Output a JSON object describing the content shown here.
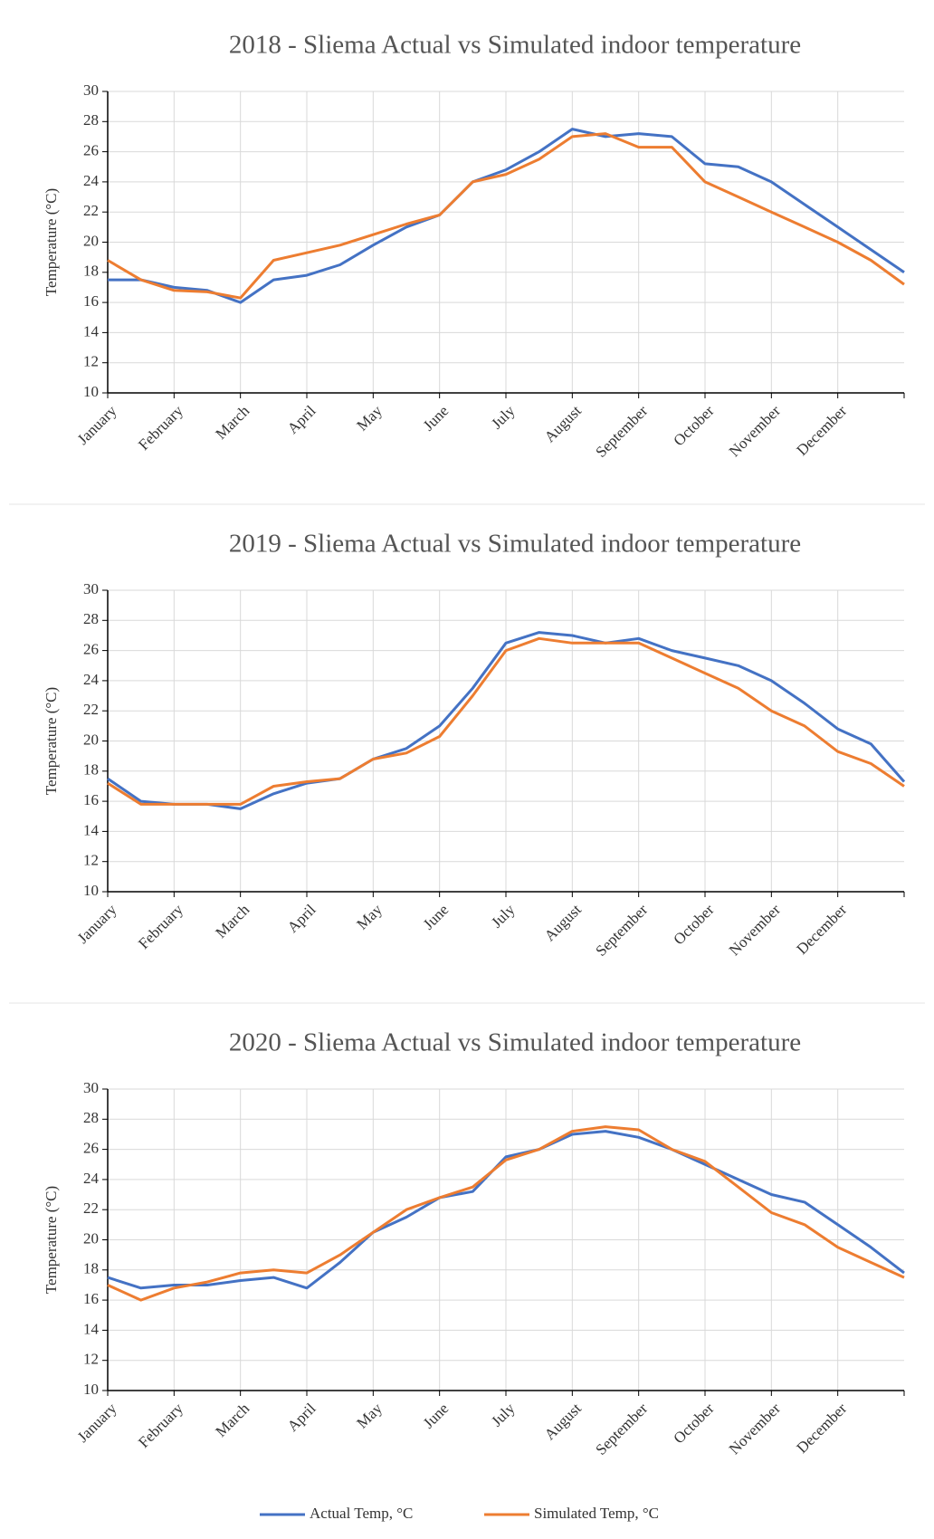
{
  "chart_data": [
    {
      "type": "line",
      "title": "2018 - Sliema Actual vs Simulated indoor temperature",
      "y_label": "Temperature (°C)",
      "categories": [
        "January",
        null,
        "February",
        null,
        "March",
        null,
        "April",
        null,
        "May",
        null,
        "June",
        null,
        "July",
        null,
        "August",
        null,
        "September",
        null,
        "October",
        null,
        "November",
        null,
        "December",
        null,
        null
      ],
      "series": [
        {
          "name": "Actual Temp, °C",
          "color": "#4472c4",
          "values": [
            17.5,
            17.5,
            17.0,
            16.8,
            16.0,
            17.5,
            17.8,
            18.5,
            19.8,
            21.0,
            21.8,
            24.0,
            24.8,
            26.0,
            27.5,
            27.0,
            27.2,
            27.0,
            25.2,
            25.0,
            24.0,
            22.5,
            21.0,
            19.5,
            18.0
          ]
        },
        {
          "name": "Simulated Temp, °C",
          "color": "#ed7d31",
          "values": [
            18.8,
            17.5,
            16.8,
            16.7,
            16.3,
            18.8,
            19.3,
            19.8,
            20.5,
            21.2,
            21.8,
            24.0,
            24.5,
            25.5,
            27.0,
            27.2,
            26.3,
            26.3,
            24.0,
            23.0,
            22.0,
            21.0,
            20.0,
            18.8,
            17.2
          ]
        }
      ],
      "ylim": [
        10,
        30
      ],
      "yticks": [
        10,
        12,
        14,
        16,
        18,
        20,
        22,
        24,
        26,
        28,
        30
      ],
      "grid": true
    },
    {
      "type": "line",
      "title": "2019 - Sliema Actual vs Simulated indoor temperature",
      "y_label": "Temperature (°C)",
      "categories": [
        "January",
        null,
        "February",
        null,
        "March",
        null,
        "April",
        null,
        "May",
        null,
        "June",
        null,
        "July",
        null,
        "August",
        null,
        "September",
        null,
        "October",
        null,
        "November",
        null,
        "December",
        null,
        null
      ],
      "series": [
        {
          "color": "#4472c4",
          "values": [
            17.5,
            16.0,
            15.8,
            15.8,
            15.5,
            16.5,
            17.2,
            17.5,
            18.8,
            19.5,
            21.0,
            23.5,
            26.5,
            27.2,
            27.0,
            26.5,
            26.8,
            26.0,
            25.5,
            25.0,
            24.0,
            22.5,
            20.8,
            19.8,
            17.3
          ]
        },
        {
          "color": "#ed7d31",
          "values": [
            17.2,
            15.8,
            15.8,
            15.8,
            15.8,
            17.0,
            17.3,
            17.5,
            18.8,
            19.2,
            20.3,
            23.0,
            26.0,
            26.8,
            26.5,
            26.5,
            26.5,
            25.5,
            24.5,
            23.5,
            22.0,
            21.0,
            19.3,
            18.5,
            17.0
          ]
        }
      ],
      "ylim": [
        10,
        30
      ],
      "yticks": [
        10,
        12,
        14,
        16,
        18,
        20,
        22,
        24,
        26,
        28,
        30
      ],
      "grid": true
    },
    {
      "type": "line",
      "title": "2020 - Sliema Actual vs Simulated indoor temperature",
      "y_label": "Temperature (°C)",
      "categories": [
        "January",
        null,
        "February",
        null,
        "March",
        null,
        "April",
        null,
        "May",
        null,
        "June",
        null,
        "July",
        null,
        "August",
        null,
        "September",
        null,
        "October",
        null,
        "November",
        null,
        "December",
        null,
        null
      ],
      "series": [
        {
          "color": "#4472c4",
          "values": [
            17.5,
            16.8,
            17.0,
            17.0,
            17.3,
            17.5,
            16.8,
            18.5,
            20.5,
            21.5,
            22.8,
            23.2,
            25.5,
            26.0,
            27.0,
            27.2,
            26.8,
            26.0,
            25.0,
            24.0,
            23.0,
            22.5,
            21.0,
            19.5,
            17.8
          ]
        },
        {
          "color": "#ed7d31",
          "values": [
            17.0,
            16.0,
            16.8,
            17.2,
            17.8,
            18.0,
            17.8,
            19.0,
            20.5,
            22.0,
            22.8,
            23.5,
            25.3,
            26.0,
            27.2,
            27.5,
            27.3,
            26.0,
            25.2,
            23.5,
            21.8,
            21.0,
            19.5,
            18.5,
            17.5
          ]
        }
      ],
      "ylim": [
        10,
        30
      ],
      "yticks": [
        10,
        12,
        14,
        16,
        18,
        20,
        22,
        24,
        26,
        28,
        30
      ],
      "grid": true
    }
  ]
}
